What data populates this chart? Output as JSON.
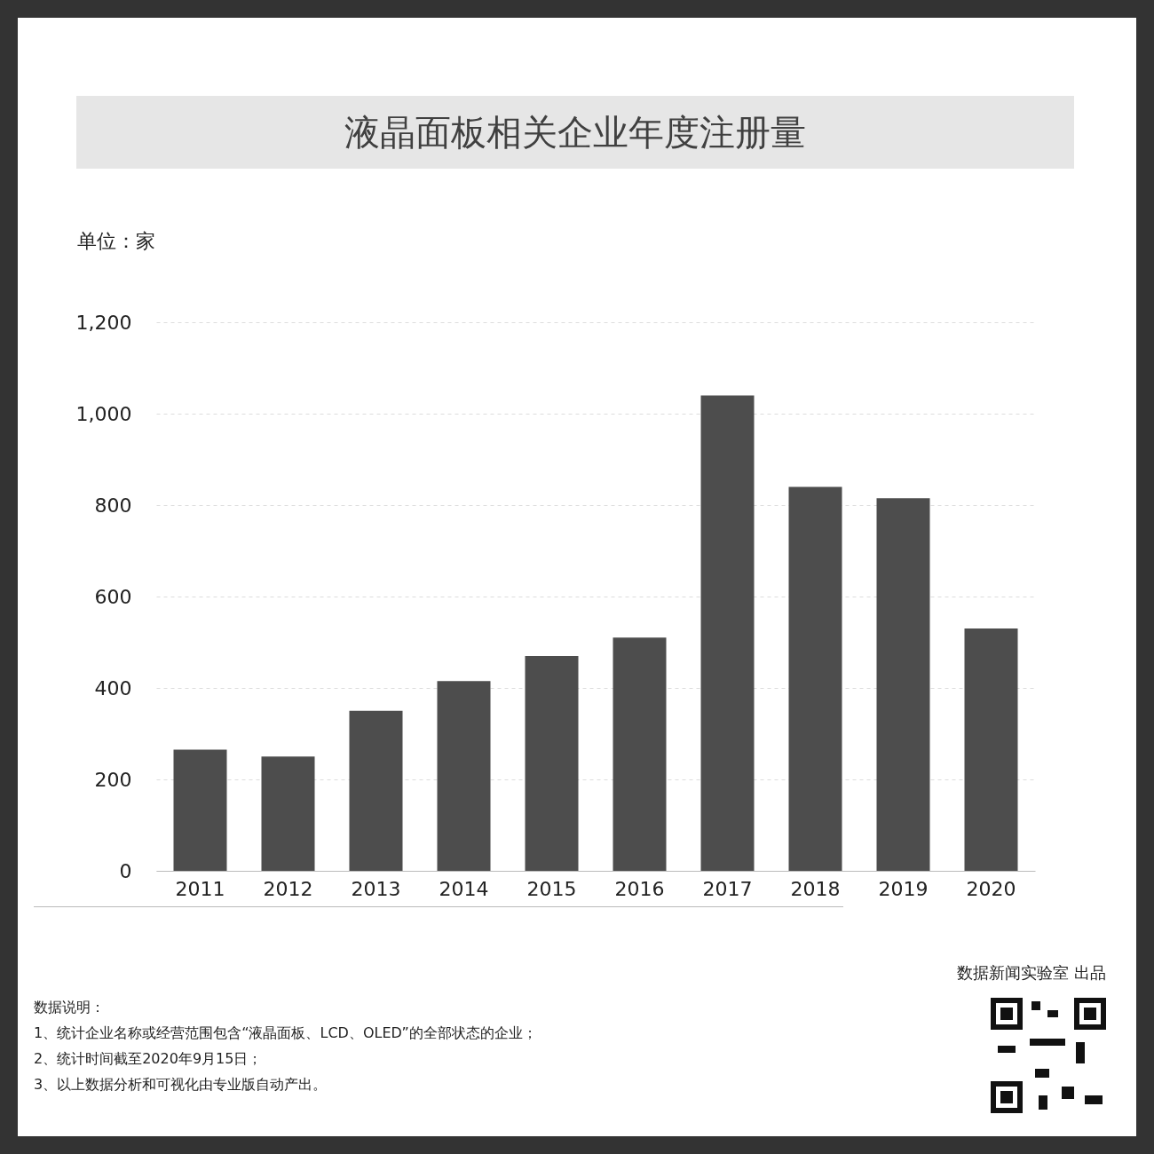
{
  "chart_data": {
    "type": "bar",
    "title": "液晶面板相关企业年度注册量",
    "ylabel": "单位：家",
    "categories": [
      "2011",
      "2012",
      "2013",
      "2014",
      "2015",
      "2016",
      "2017",
      "2018",
      "2019",
      "2020"
    ],
    "series": [
      {
        "color": "#4d4d4d",
        "values": [
          265,
          250,
          350,
          415,
          470,
          510,
          1040,
          840,
          815,
          530
        ]
      }
    ],
    "ylim": [
      0,
      1200
    ],
    "yticks": [
      0,
      200,
      400,
      600,
      800,
      {
        "value": 1000,
        "label": "1,000"
      },
      {
        "value": 1200,
        "label": "1,200"
      }
    ],
    "grid": "y",
    "annotations": [
      "数据说明：",
      "1、统计企业名称或经营范围包含“液晶面板、LCD、OLED”的全部状态的企业；",
      "2、统计时间截至2020年9月15日；",
      "3、以上数据分析和可视化由专业版自动产出。",
      "数据新闻实验室 出品"
    ]
  }
}
